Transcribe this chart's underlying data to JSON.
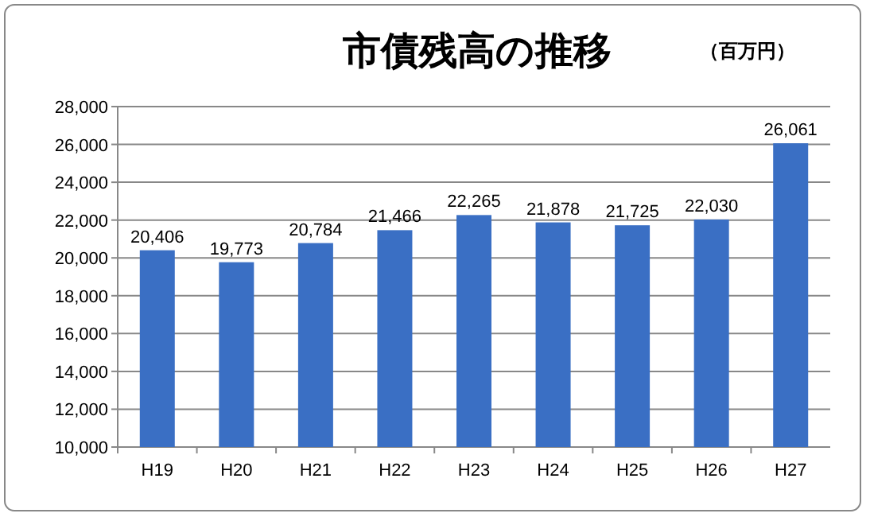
{
  "chart_data": {
    "type": "bar",
    "title": "市債残高の推移",
    "annotations": [
      "（百万円）"
    ],
    "categories": [
      "H19",
      "H20",
      "H21",
      "H22",
      "H23",
      "H24",
      "H25",
      "H26",
      "H27"
    ],
    "values": [
      20406,
      19773,
      20784,
      21466,
      22265,
      21878,
      21725,
      22030,
      26061
    ],
    "color": "#3a6fc4",
    "ylim": [
      10000,
      28000
    ],
    "yticks": [
      {
        "value": 10000,
        "label": "10,000"
      },
      {
        "value": 12000,
        "label": "12,000"
      },
      {
        "value": 14000,
        "label": "14,000"
      },
      {
        "value": 16000,
        "label": "16,000"
      },
      {
        "value": 18000,
        "label": "18,000"
      },
      {
        "value": 20000,
        "label": "20,000"
      },
      {
        "value": 22000,
        "label": "22,000"
      },
      {
        "value": 24000,
        "label": "24,000"
      },
      {
        "value": 26000,
        "label": "26,000"
      },
      {
        "value": 28000,
        "label": "28,000"
      }
    ],
    "grid": "y",
    "value_labels": [
      "20,406",
      "19,773",
      "20,784",
      "21,466",
      "22,265",
      "21,878",
      "21,725",
      "22,030",
      "26,061"
    ]
  }
}
